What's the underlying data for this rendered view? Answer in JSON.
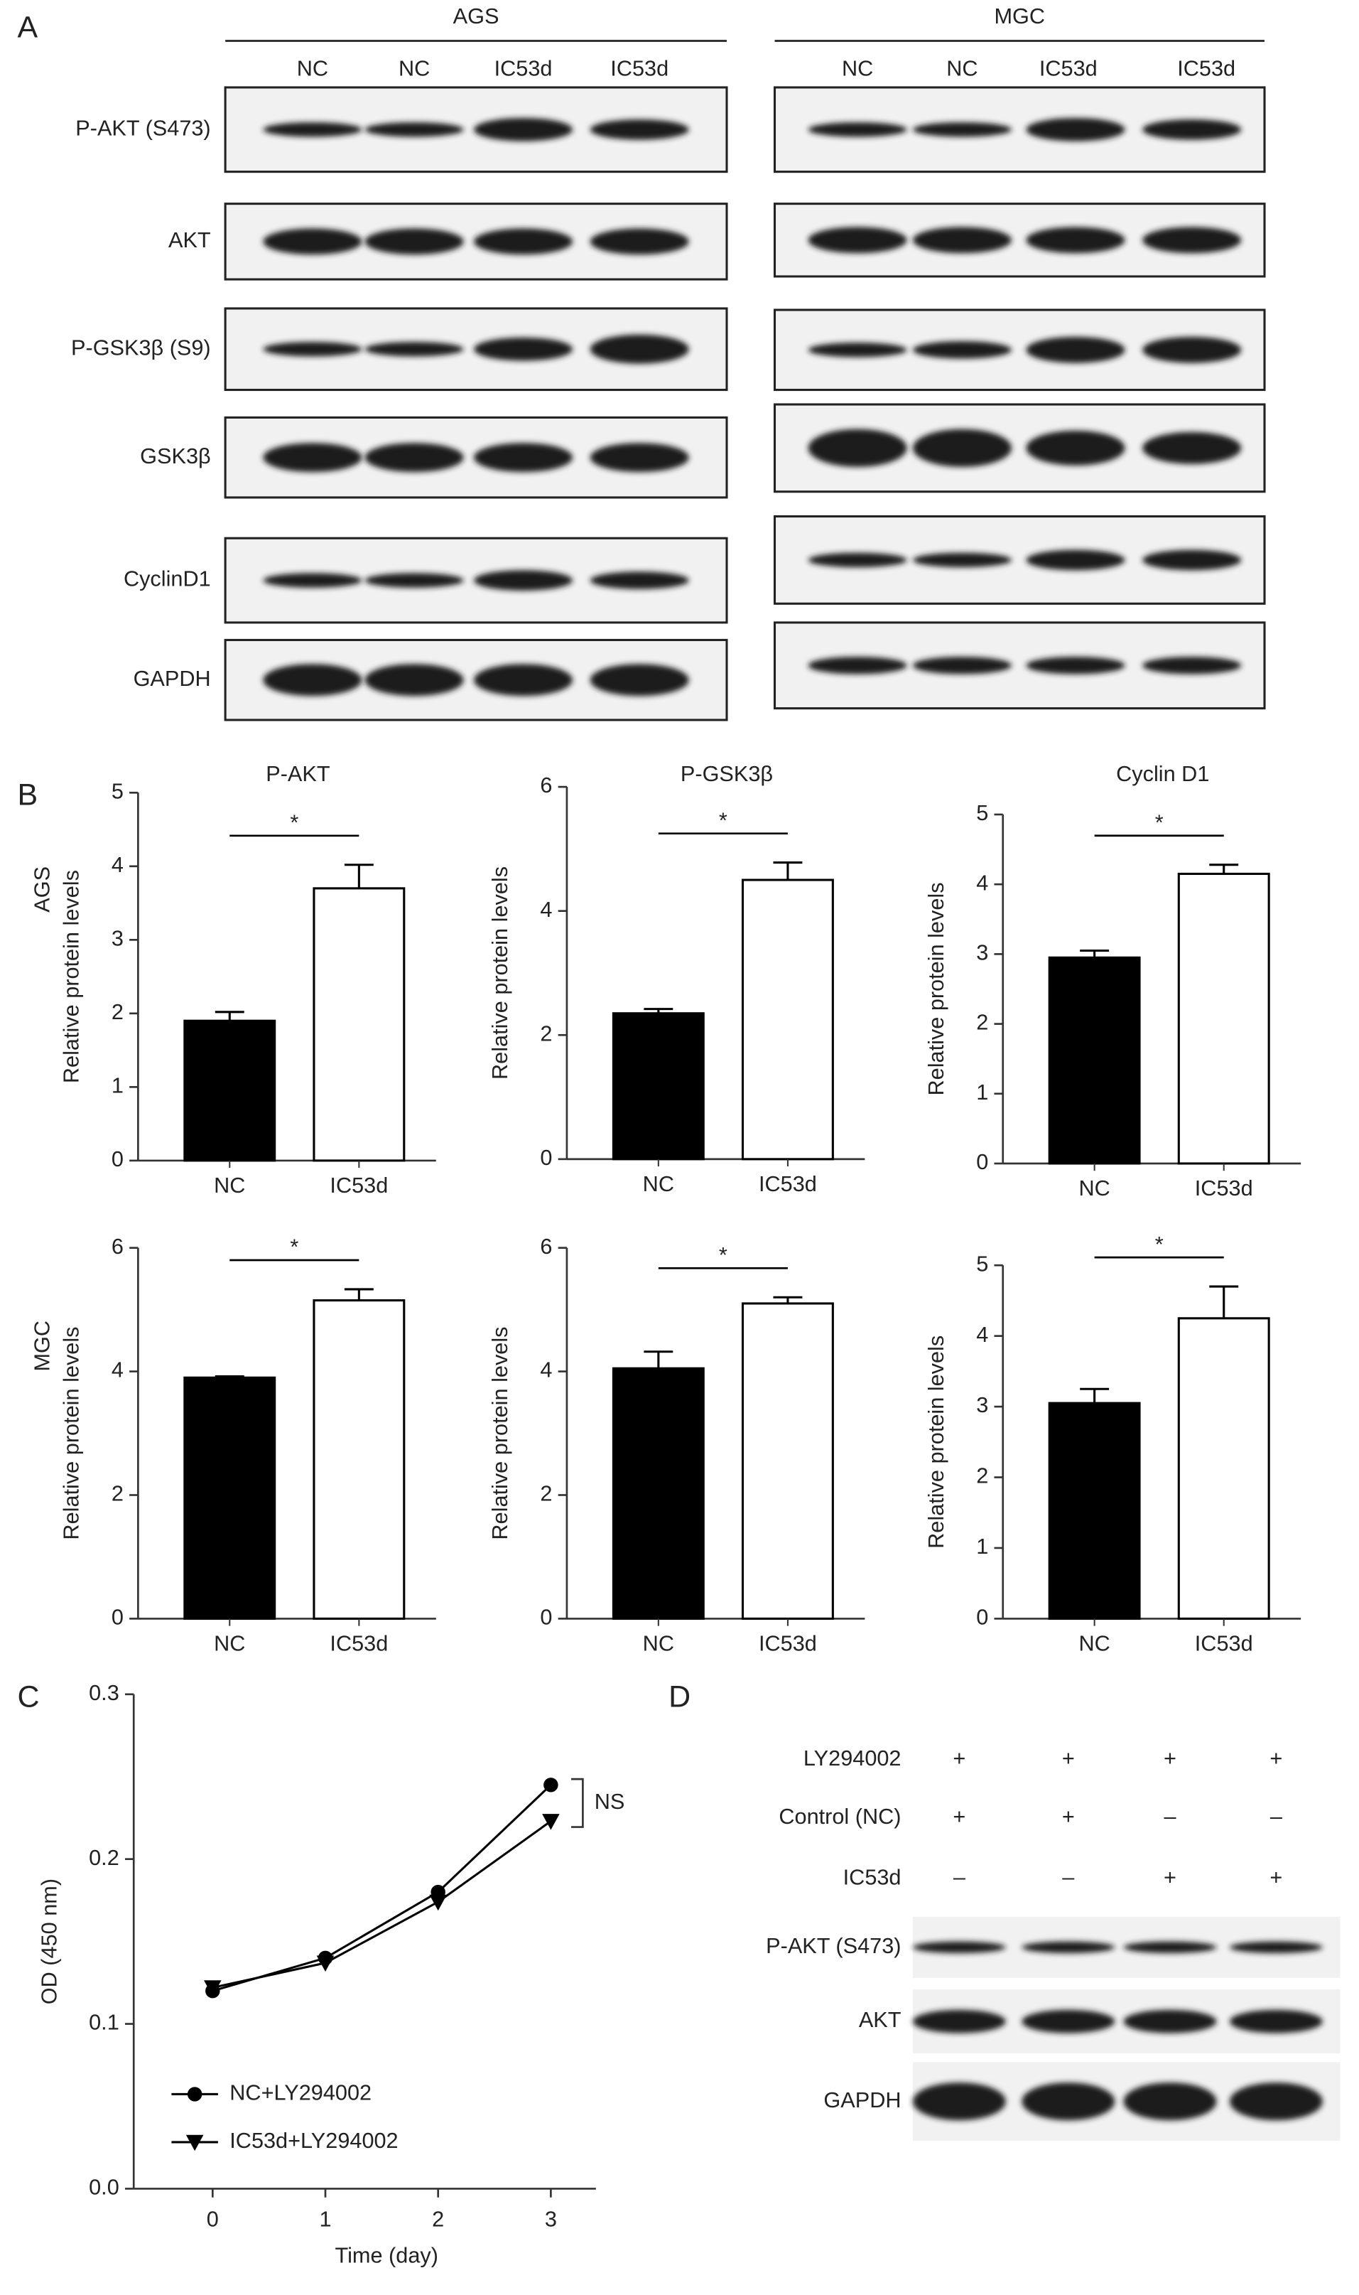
{
  "panel_labels": [
    "A",
    "B",
    "C",
    "D"
  ],
  "panel_a": {
    "groups": [
      {
        "name": "AGS",
        "lanes": [
          "NC",
          "NC",
          "IC53d",
          "IC53d"
        ]
      },
      {
        "name": "MGC",
        "lanes": [
          "NC",
          "NC",
          "IC53d",
          "IC53d"
        ]
      }
    ],
    "proteins": [
      "P-AKT (S473)",
      "AKT",
      "P-GSK3β (S9)",
      "GSK3β",
      "CyclinD1",
      "GAPDH"
    ]
  },
  "chart_data": [
    {
      "type": "bar",
      "title": "P-AKT",
      "row_label": "AGS",
      "ylabel": "Relative protein levels",
      "categories": [
        "NC",
        "IC53d"
      ],
      "values": [
        1.9,
        3.7
      ],
      "errors": [
        0.12,
        0.32
      ],
      "colors": [
        "#000000",
        "#ffffff"
      ],
      "ylim": [
        0,
        5
      ],
      "yticks": [
        0,
        1,
        2,
        3,
        4,
        5
      ],
      "annotation": "*"
    },
    {
      "type": "bar",
      "title": "P-GSK3β",
      "ylabel": "Relative protein levels",
      "categories": [
        "NC",
        "IC53d"
      ],
      "values": [
        2.35,
        4.5
      ],
      "errors": [
        0.07,
        0.28
      ],
      "colors": [
        "#000000",
        "#ffffff"
      ],
      "ylim": [
        0,
        6
      ],
      "yticks": [
        0,
        2,
        4,
        6
      ],
      "annotation": "*"
    },
    {
      "type": "bar",
      "title": "Cyclin D1",
      "ylabel": "Relative protein levels",
      "categories": [
        "NC",
        "IC53d"
      ],
      "values": [
        2.95,
        4.15
      ],
      "errors": [
        0.1,
        0.13
      ],
      "colors": [
        "#000000",
        "#ffffff"
      ],
      "ylim": [
        0,
        5
      ],
      "yticks": [
        0,
        1,
        2,
        3,
        4,
        5
      ],
      "annotation": "*"
    },
    {
      "type": "bar",
      "row_label": "MGC",
      "ylabel": "Relative protein levels",
      "categories": [
        "NC",
        "IC53d"
      ],
      "values": [
        3.9,
        5.15
      ],
      "errors": [
        0.02,
        0.18
      ],
      "colors": [
        "#000000",
        "#ffffff"
      ],
      "ylim": [
        0,
        6
      ],
      "yticks": [
        0,
        2,
        4,
        6
      ],
      "annotation": "*"
    },
    {
      "type": "bar",
      "ylabel": "Relative protein levels",
      "categories": [
        "NC",
        "IC53d"
      ],
      "values": [
        4.05,
        5.1
      ],
      "errors": [
        0.27,
        0.1
      ],
      "colors": [
        "#000000",
        "#ffffff"
      ],
      "ylim": [
        0,
        6
      ],
      "yticks": [
        0,
        2,
        4,
        6
      ],
      "annotation": "*"
    },
    {
      "type": "bar",
      "ylabel": "Relative protein levels",
      "categories": [
        "NC",
        "IC53d"
      ],
      "values": [
        3.05,
        4.25
      ],
      "errors": [
        0.2,
        0.45
      ],
      "colors": [
        "#000000",
        "#ffffff"
      ],
      "ylim": [
        0,
        5
      ],
      "yticks": [
        0,
        1,
        2,
        3,
        4,
        5
      ],
      "annotation": "*"
    },
    {
      "type": "line",
      "xlabel": "Time (day)",
      "ylabel": "OD (450 nm)",
      "x": [
        0,
        1,
        2,
        3
      ],
      "series": [
        {
          "name": "NC+LY294002",
          "color": "#000000",
          "marker": "circle",
          "values": [
            0.12,
            0.14,
            0.18,
            0.245
          ]
        },
        {
          "name": "IC53d+LY294002",
          "color": "#000000",
          "marker": "triangle-down",
          "values": [
            0.122,
            0.137,
            0.174,
            0.223
          ]
        }
      ],
      "xlim": [
        -0.7,
        3.4
      ],
      "xticks": [
        0,
        1,
        2,
        3
      ],
      "ylim": [
        0,
        0.3
      ],
      "yticks": [
        {
          "value": 0,
          "label": "0.0"
        },
        0.1,
        0.2,
        0.3
      ],
      "annotation": "NS"
    }
  ],
  "panel_d": {
    "treatments": [
      {
        "name": "LY294002",
        "signs": [
          "+",
          "+",
          "+",
          "+"
        ]
      },
      {
        "name": "Control (NC)",
        "signs": [
          "+",
          "+",
          "–",
          "–"
        ]
      },
      {
        "name": "IC53d",
        "signs": [
          "–",
          "–",
          "+",
          "+"
        ]
      }
    ],
    "proteins": [
      "P-AKT (S473)",
      "AKT",
      "GAPDH"
    ]
  }
}
